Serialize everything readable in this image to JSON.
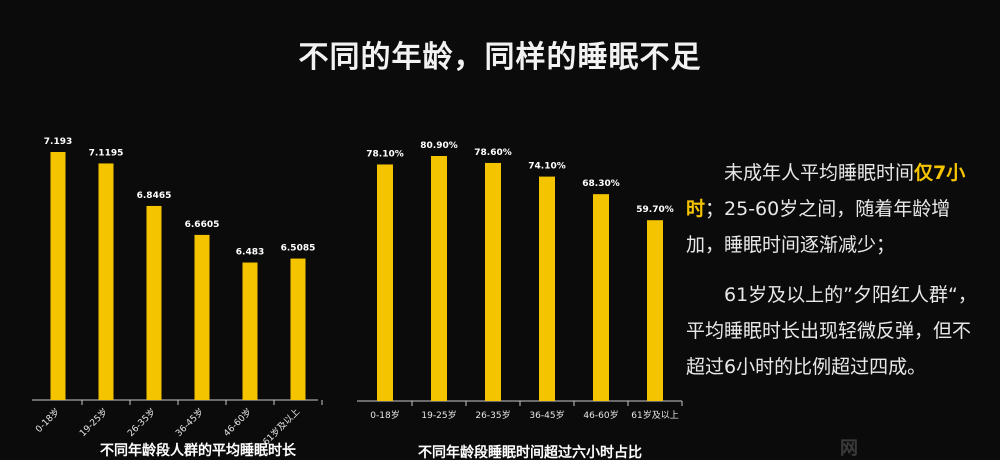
{
  "title": "不同的年龄，同样的睡眠不足",
  "chart_data": [
    {
      "type": "bar",
      "title": "不同年龄段人群的平均睡眠时长",
      "categories": [
        "0-18岁",
        "19-25岁",
        "26-35岁",
        "36-45岁",
        "46-60岁",
        "61岁及以上"
      ],
      "values": [
        7.193,
        7.1195,
        6.8465,
        6.6605,
        6.483,
        6.5085
      ],
      "value_labels": [
        "7.193",
        "7.1195",
        "6.8465",
        "6.6605",
        "6.483",
        "6.5085"
      ],
      "bar_color": "#f5c400"
    },
    {
      "type": "bar",
      "title": "不同年龄段睡眠时间超过六小时占比",
      "categories": [
        "0-18岁",
        "19-25岁",
        "26-35岁",
        "36-45岁",
        "46-60岁",
        "61岁及以上"
      ],
      "values": [
        78.1,
        80.9,
        78.6,
        74.1,
        68.3,
        59.7
      ],
      "value_labels": [
        "78.10%",
        "80.90%",
        "78.60%",
        "74.10%",
        "68.30%",
        "59.70%"
      ],
      "bar_color": "#f5c400"
    }
  ],
  "side": {
    "p1_a": "未成年人平均睡眠时间",
    "p1_highlight": "仅7小时",
    "p1_b": "；25-60岁之间，随着年龄增加，睡眠时间逐渐减少；",
    "p2": "61岁及以上的”夕阳红人群“，平均睡眠时长出现轻微反弹，但不超过6小时的比例超过四成。"
  },
  "watermark": "网"
}
